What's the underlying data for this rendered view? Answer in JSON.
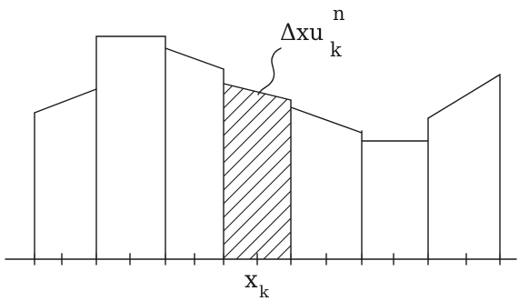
{
  "diagram": {
    "cell_label": {
      "prefix": "Δxu",
      "superscript": "n",
      "subscript": "k"
    },
    "axis_label": {
      "base": "x",
      "subscript": "k"
    },
    "colors": {
      "ink": "#1a1a1a",
      "background": "#ffffff"
    }
  }
}
